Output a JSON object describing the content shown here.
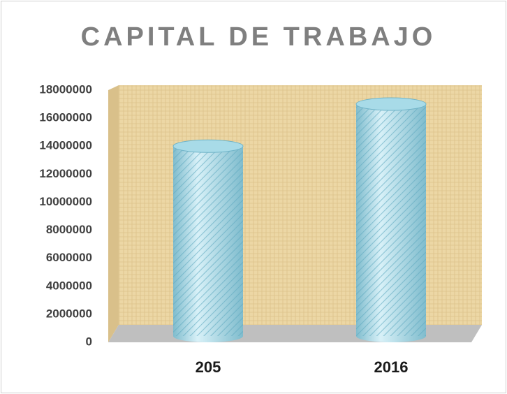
{
  "chart_data": {
    "type": "bar",
    "title": "CAPITAL DE TRABAJO",
    "categories": [
      "205",
      "2016"
    ],
    "values": [
      14000000,
      17000000
    ],
    "color": "#a8dbe8",
    "ylim": [
      0,
      18000000
    ],
    "yticks": [
      0,
      2000000,
      4000000,
      6000000,
      8000000,
      10000000,
      12000000,
      14000000,
      16000000,
      18000000
    ]
  }
}
